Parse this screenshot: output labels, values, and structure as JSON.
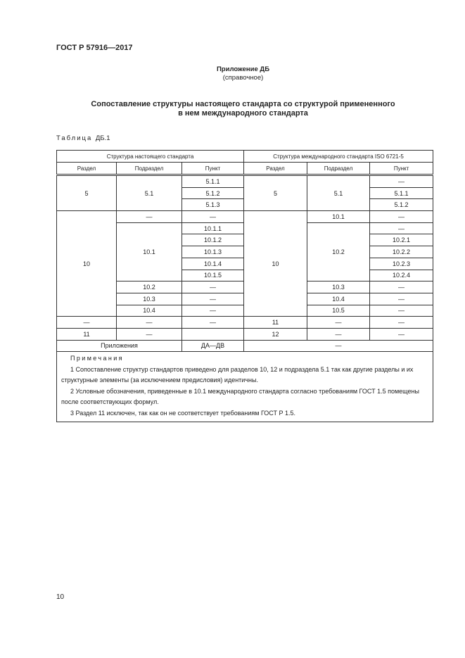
{
  "header": {
    "standard": "ГОСТ Р 57916—2017"
  },
  "appendix": {
    "name": "Приложение ДБ",
    "type": "(справочное)"
  },
  "title": {
    "line1": "Сопоставление структуры настоящего стандарта со структурой примененного",
    "line2": "в нем международного стандарта"
  },
  "table_caption": {
    "label": "Таблица",
    "number": "ДБ.1"
  },
  "table": {
    "group_headers": [
      "Структура настоящего стандарта",
      "Структура международного стандарта ISO 6721-5"
    ],
    "col_headers": [
      "Раздел",
      "Подраздел",
      "Пункт",
      "Раздел",
      "Подраздел",
      "Пункт"
    ],
    "body": [
      [
        "5",
        "5.1",
        "5.1.1",
        "5",
        "5.1",
        "—"
      ],
      [
        "5.1.2",
        "5.1.1"
      ],
      [
        "5.1.3",
        "5.1.2"
      ],
      [
        "10",
        "—",
        "—",
        "10",
        "10.1",
        "—"
      ],
      [
        "10.1",
        "10.1.1",
        "10.2",
        "—"
      ],
      [
        "10.1.2",
        "10.2.1"
      ],
      [
        "10.1.3",
        "10.2.2"
      ],
      [
        "10.1.4",
        "10.2.3"
      ],
      [
        "10.1.5",
        "10.2.4"
      ],
      [
        "10.2",
        "—",
        "10.3",
        "—"
      ],
      [
        "10.3",
        "—",
        "10.4",
        "—"
      ],
      [
        "10.4",
        "—",
        "10.5",
        "—"
      ],
      [
        "—",
        "—",
        "—",
        "11",
        "—",
        "—"
      ],
      [
        "11",
        "—",
        "",
        "12",
        "—",
        "—"
      ],
      [
        "Приложения",
        "ДА—ДВ",
        "—"
      ]
    ],
    "notes": {
      "heading": "Примечания",
      "items": [
        "1 Сопоставление структур стандартов приведено для разделов 10, 12 и подраздела 5.1 так как другие разделы и их структурные элементы (за исключением предисловия) идентичны.",
        "2 Условные обозначения, приведенные в 10.1 международного стандарта согласно требованиям ГОСТ 1.5 помещены после соответствующих формул.",
        "3 Раздел 11 исключен, так как он не соответствует требованиям ГОСТ Р 1.5."
      ]
    }
  },
  "page_number": "10"
}
